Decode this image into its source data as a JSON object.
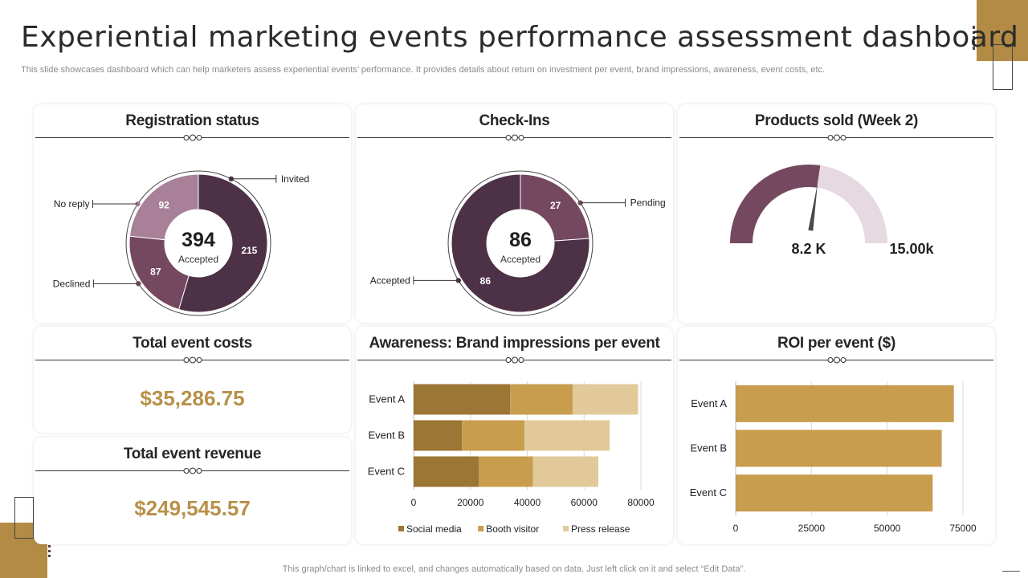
{
  "page": {
    "title": "Experiential marketing events performance assessment dashboard",
    "subtitle": "This slide showcases dashboard which can help marketers assess experiential events’ performance. It provides details about return on investment per event,  brand impressions, awareness, event costs, etc.",
    "footer": "This graph/chart is linked to excel,  and changes automatically based on data. Just left click on it and select “Edit Data”."
  },
  "colors": {
    "accent_gold": "#b38b45",
    "plum_dark": "#4d3147",
    "plum_mid": "#74485f",
    "plum_light": "#a88098",
    "gauge_light": "#e6d9e2",
    "gold_dark": "#9c7634",
    "gold_mid": "#c89d4e",
    "gold_light": "#e2c99a",
    "value_gold": "#b8904a"
  },
  "cards": {
    "registration": {
      "title": "Registration status"
    },
    "checkins": {
      "title": "Check-Ins"
    },
    "products": {
      "title": "Products sold (Week 2)"
    },
    "costs": {
      "title": "Total event costs",
      "value": "$35,286.75"
    },
    "revenue": {
      "title": "Total event revenue",
      "value": "$249,545.57"
    },
    "awareness": {
      "title": "Awareness: Brand impressions per event"
    },
    "roi": {
      "title": "ROI per event ($)"
    }
  },
  "chart_data": [
    {
      "id": "registration",
      "type": "pie",
      "title": "Registration status",
      "center_value": "394",
      "center_label": "Accepted",
      "slices": [
        {
          "label": "Invited",
          "value": 215,
          "color": "#4d3147"
        },
        {
          "label": "Declined",
          "value": 87,
          "color": "#74485f"
        },
        {
          "label": "No reply",
          "value": 92,
          "color": "#a88098"
        }
      ]
    },
    {
      "id": "checkins",
      "type": "pie",
      "title": "Check-Ins",
      "center_value": "86",
      "center_label": "Accepted",
      "slices": [
        {
          "label": "Pending",
          "value": 27,
          "color": "#74485f"
        },
        {
          "label": "Accepted",
          "value": 86,
          "color": "#4d3147"
        }
      ]
    },
    {
      "id": "products",
      "type": "gauge",
      "title": "Products sold (Week 2)",
      "value": 8.2,
      "max": 15,
      "value_label": "8.2 K",
      "max_label": "15.00k",
      "fill_color": "#74485f",
      "track_color": "#e6d9e2"
    },
    {
      "id": "awareness",
      "type": "bar",
      "orientation": "horizontal",
      "stacked": true,
      "title": "Awareness: Brand impressions per event",
      "categories": [
        "Event A",
        "Event B",
        "Event C"
      ],
      "series": [
        {
          "name": "Social media",
          "values": [
            34000,
            17000,
            23000
          ],
          "color": "#9c7634"
        },
        {
          "name": "Booth visitor",
          "values": [
            22000,
            22000,
            19000
          ],
          "color": "#c89d4e"
        },
        {
          "name": "Press release",
          "values": [
            23000,
            30000,
            23000
          ],
          "color": "#e2c99a"
        }
      ],
      "xlim": [
        0,
        80000
      ],
      "xticks": [
        "0",
        "20000",
        "40000",
        "60000",
        "80000"
      ],
      "legend": "bottom"
    },
    {
      "id": "roi",
      "type": "bar",
      "orientation": "horizontal",
      "title": "ROI per event ($)",
      "categories": [
        "Event A",
        "Event B",
        "Event C"
      ],
      "values": [
        72000,
        68000,
        65000
      ],
      "color": "#c89d4e",
      "xlim": [
        0,
        75000
      ],
      "xticks": [
        "0",
        "25000",
        "50000",
        "75000"
      ]
    }
  ]
}
